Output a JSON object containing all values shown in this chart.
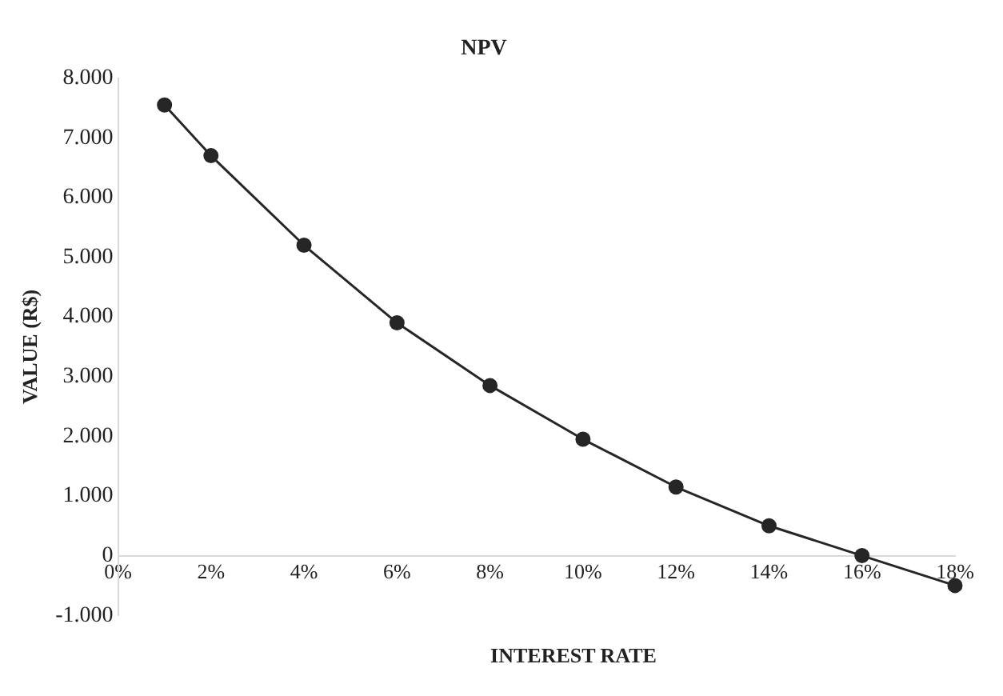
{
  "chart_data": {
    "type": "line",
    "title": "NPV",
    "xlabel": "INTEREST RATE",
    "ylabel": "VALUE (R$)",
    "x": [
      1,
      2,
      4,
      6,
      8,
      10,
      12,
      14,
      16,
      18
    ],
    "series": [
      {
        "color": "#262626",
        "values": [
          7550,
          6700,
          5200,
          3900,
          2850,
          1950,
          1150,
          500,
          0,
          -500
        ]
      }
    ],
    "xlim": [
      0,
      18
    ],
    "xticks": [
      {
        "value": 0,
        "label": "0%"
      },
      {
        "value": 2,
        "label": "2%"
      },
      {
        "value": 4,
        "label": "4%"
      },
      {
        "value": 6,
        "label": "6%"
      },
      {
        "value": 8,
        "label": "8%"
      },
      {
        "value": 10,
        "label": "10%"
      },
      {
        "value": 12,
        "label": "12%"
      },
      {
        "value": 14,
        "label": "14%"
      },
      {
        "value": 16,
        "label": "16%"
      },
      {
        "value": 18,
        "label": "18%"
      }
    ],
    "ylim": [
      -1000,
      8000
    ],
    "yticks": [
      {
        "value": -1000,
        "label": "-1.000"
      },
      {
        "value": 0,
        "label": "0"
      },
      {
        "value": 1000,
        "label": "1.000"
      },
      {
        "value": 2000,
        "label": "2.000"
      },
      {
        "value": 3000,
        "label": "3.000"
      },
      {
        "value": 4000,
        "label": "4.000"
      },
      {
        "value": 5000,
        "label": "5.000"
      },
      {
        "value": 6000,
        "label": "6.000"
      },
      {
        "value": 7000,
        "label": "7.000"
      },
      {
        "value": 8000,
        "label": "8.000"
      }
    ],
    "grid": false,
    "legend": false,
    "marker": "circle",
    "line_style": "solid"
  }
}
